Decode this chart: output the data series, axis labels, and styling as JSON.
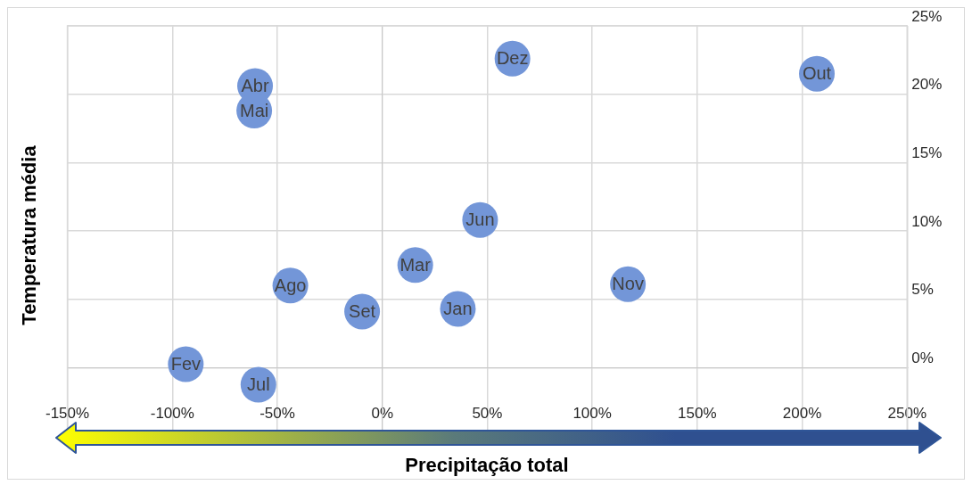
{
  "chart_data": {
    "type": "scatter",
    "xlabel": "Precipitação total",
    "ylabel": "Temperatura média",
    "x": [
      36,
      -93.6,
      15.7,
      -60.6,
      -61,
      46.6,
      -59,
      -43.8,
      -9.6,
      207,
      117,
      62
    ],
    "series": [
      {
        "color": "#7396d8",
        "values": [
          4.3,
          0.25,
          7.5,
          20.6,
          18.8,
          10.8,
          -1.25,
          6,
          4.1,
          21.5,
          6.1,
          22.6
        ]
      }
    ],
    "annotations": [
      {
        "text": "Jan",
        "x": 36,
        "y": 4.3
      },
      {
        "text": "Fev",
        "x": -93.6,
        "y": 0.25
      },
      {
        "text": "Mar",
        "x": 15.7,
        "y": 7.5
      },
      {
        "text": "Abr",
        "x": -60.6,
        "y": 20.6
      },
      {
        "text": "Mai",
        "x": -61,
        "y": 18.8
      },
      {
        "text": "Jun",
        "x": 46.6,
        "y": 10.8
      },
      {
        "text": "Jul",
        "x": -59,
        "y": -1.25
      },
      {
        "text": "Ago",
        "x": -43.8,
        "y": 6
      },
      {
        "text": "Set",
        "x": -9.6,
        "y": 4.1
      },
      {
        "text": "Out",
        "x": 207,
        "y": 21.5
      },
      {
        "text": "Nov",
        "x": 117,
        "y": 6.1
      },
      {
        "text": "Dez",
        "x": 62,
        "y": 22.6
      }
    ],
    "xlim": [
      -150,
      250
    ],
    "xticks": [
      {
        "value": -150,
        "label": "-150%"
      },
      {
        "value": -100,
        "label": "-100%"
      },
      {
        "value": -50,
        "label": "-50%"
      },
      {
        "value": 0,
        "label": "0%"
      },
      {
        "value": 50,
        "label": "50%"
      },
      {
        "value": 100,
        "label": "100%"
      },
      {
        "value": 150,
        "label": "150%"
      },
      {
        "value": 200,
        "label": "200%"
      },
      {
        "value": 250,
        "label": "250%"
      }
    ],
    "ylim": [
      -5,
      25
    ],
    "yticks": [
      {
        "value": -5,
        "label": null
      },
      {
        "value": 0,
        "label": "0%"
      },
      {
        "value": 5,
        "label": "5%"
      },
      {
        "value": 10,
        "label": "10%"
      },
      {
        "value": 15,
        "label": "15%"
      },
      {
        "value": 20,
        "label": "20%"
      },
      {
        "value": 25,
        "label": "25%"
      }
    ],
    "grid": true,
    "marker": "circle",
    "legend": false
  }
}
